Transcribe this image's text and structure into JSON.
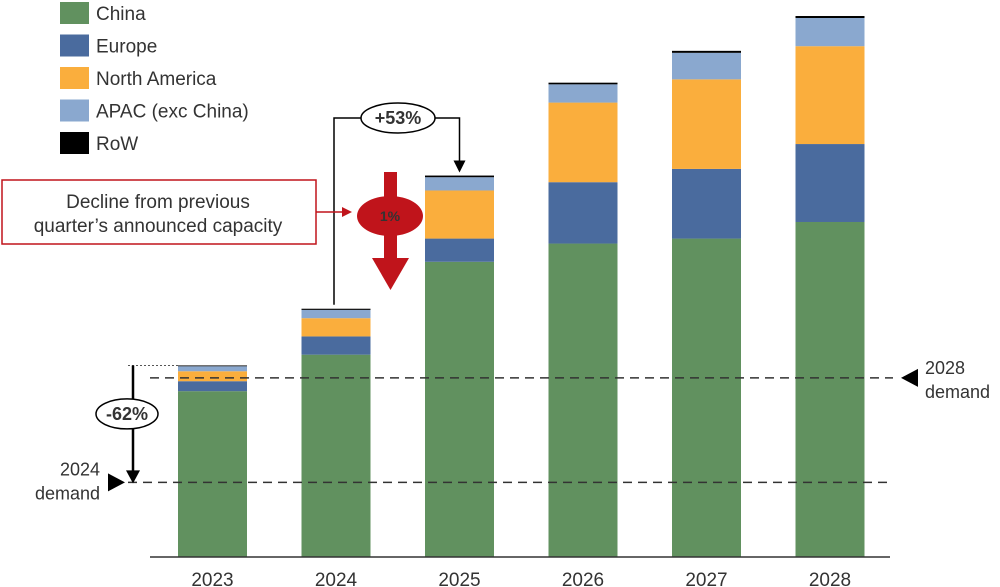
{
  "chart_data": {
    "type": "bar",
    "stacked": true,
    "categories": [
      "2023",
      "2024",
      "2025",
      "2026",
      "2027",
      "2028"
    ],
    "series": [
      {
        "name": "China",
        "color": "#61915f",
        "values": [
          1.0,
          1.22,
          1.78,
          1.89,
          1.92,
          2.02
        ]
      },
      {
        "name": "Europe",
        "color": "#4a6b9e",
        "values": [
          0.06,
          0.11,
          0.14,
          0.37,
          0.42,
          0.47
        ]
      },
      {
        "name": "North America",
        "color": "#faae3d",
        "values": [
          0.06,
          0.11,
          0.29,
          0.48,
          0.54,
          0.59
        ]
      },
      {
        "name": "APAC (exc China)",
        "color": "#8aa8cf",
        "values": [
          0.03,
          0.05,
          0.08,
          0.11,
          0.16,
          0.17
        ]
      },
      {
        "name": "RoW",
        "color": "#000000",
        "values": [
          0.005,
          0.007,
          0.01,
          0.01,
          0.012,
          0.012
        ]
      }
    ],
    "ylim": [
      0,
      3.25
    ],
    "legend_position": "top-left",
    "reference_lines": [
      {
        "label": "2028 demand",
        "value": 1.08
      },
      {
        "label": "2024 demand",
        "value": 0.45
      }
    ],
    "annotations": {
      "growth_label": "+53%",
      "reduction_label": "-62%",
      "decline_label": "1%",
      "callout_text": [
        "Decline from previous",
        "quarter’s announced capacity"
      ]
    },
    "colors": {
      "arrow_red": "#c0141b",
      "callout_border": "#c0141b"
    }
  }
}
